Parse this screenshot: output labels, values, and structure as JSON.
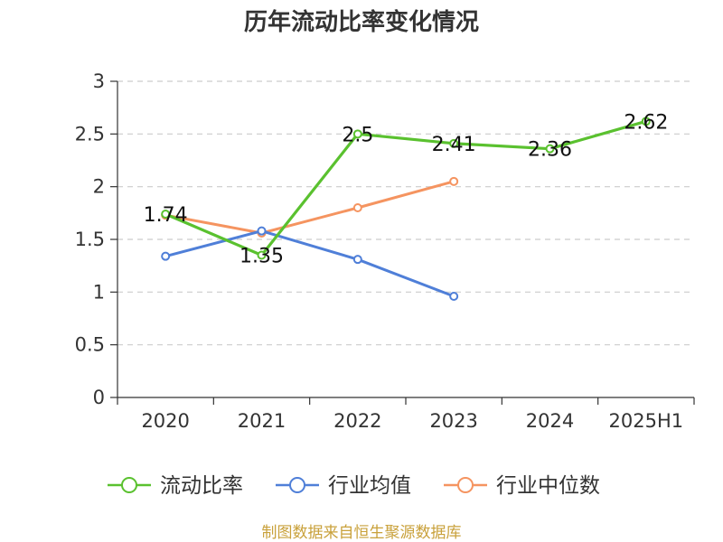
{
  "chart_data": {
    "type": "line",
    "title": "历年流动比率变化情况",
    "categories": [
      "2020",
      "2021",
      "2022",
      "2023",
      "2024",
      "2025H1"
    ],
    "ylim": [
      0,
      3
    ],
    "yticks": [
      "0",
      "0.5",
      "1",
      "1.5",
      "2",
      "2.5",
      "3"
    ],
    "grid": true,
    "legend_position": "bottom",
    "series": [
      {
        "name": "流动比率",
        "color": "#5ac12f",
        "values": [
          1.74,
          1.35,
          2.5,
          2.41,
          2.36,
          2.62
        ],
        "labels": [
          "1.74",
          "1.35",
          "2.5",
          "2.41",
          "2.36",
          "2.62"
        ]
      },
      {
        "name": "行业均值",
        "color": "#4f7fd8",
        "values": [
          1.34,
          1.58,
          1.31,
          0.96,
          null,
          null
        ]
      },
      {
        "name": "行业中位数",
        "color": "#f59460",
        "values": [
          1.73,
          1.56,
          1.8,
          2.05,
          null,
          null
        ]
      }
    ]
  },
  "footer": "制图数据来自恒生聚源数据库"
}
